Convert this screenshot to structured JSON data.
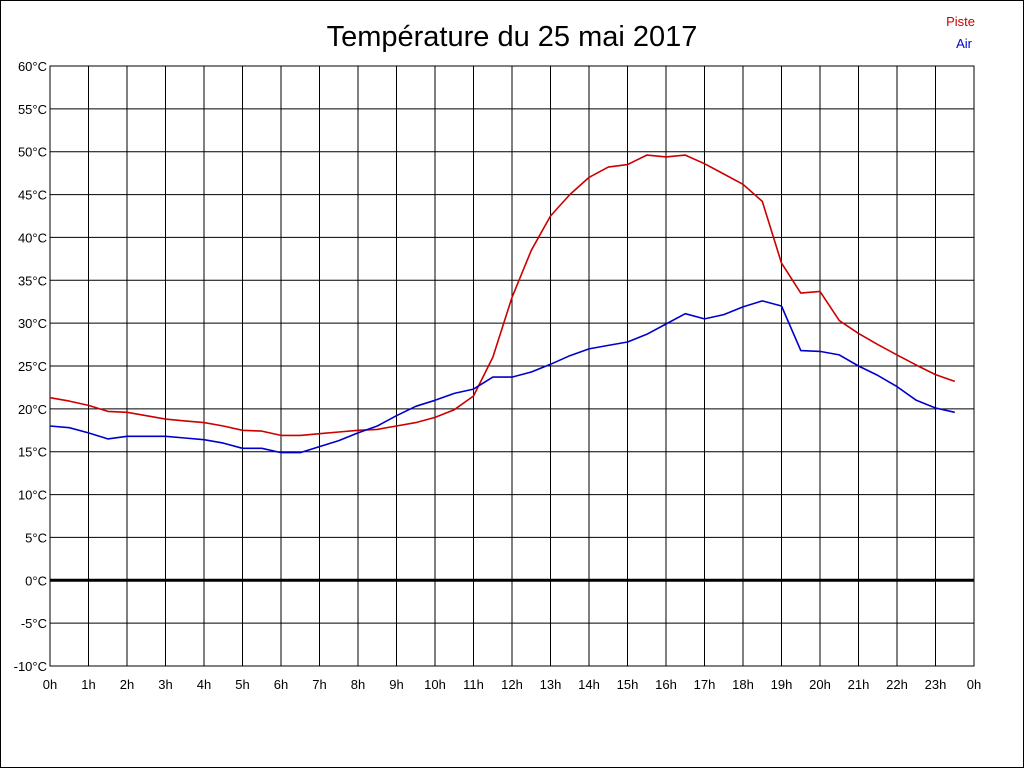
{
  "chart_data": {
    "type": "line",
    "title": "Température du 25 mai 2017",
    "xlabel": "",
    "ylabel": "",
    "x_ticks": [
      "0h",
      "1h",
      "2h",
      "3h",
      "4h",
      "5h",
      "6h",
      "7h",
      "8h",
      "9h",
      "10h",
      "11h",
      "12h",
      "13h",
      "14h",
      "15h",
      "16h",
      "17h",
      "18h",
      "19h",
      "20h",
      "21h",
      "22h",
      "23h",
      "0h"
    ],
    "y_ticks": [
      "60°C",
      "55°C",
      "50°C",
      "45°C",
      "40°C",
      "35°C",
      "30°C",
      "25°C",
      "20°C",
      "15°C",
      "10°C",
      "5°C",
      "0°C",
      "-5°C",
      "-10°C"
    ],
    "xlim": [
      0,
      24
    ],
    "ylim": [
      -10,
      60
    ],
    "grid": true,
    "legend_position": "top-right",
    "x": [
      0,
      0.5,
      1,
      1.5,
      2,
      2.5,
      3,
      3.5,
      4,
      4.5,
      5,
      5.5,
      6,
      6.5,
      7,
      7.5,
      8,
      8.5,
      9,
      9.5,
      10,
      10.5,
      11,
      11.5,
      12,
      12.5,
      13,
      13.5,
      14,
      14.5,
      15,
      15.5,
      16,
      16.5,
      17,
      17.5,
      18,
      18.5,
      19,
      19.5,
      20,
      20.5,
      21,
      21.5,
      22,
      22.5,
      23,
      23.5
    ],
    "series": [
      {
        "name": "Piste",
        "color": "#cc0000",
        "values": [
          21.3,
          20.9,
          20.4,
          19.7,
          19.6,
          19.2,
          18.8,
          18.6,
          18.4,
          18.0,
          17.5,
          17.4,
          16.9,
          16.9,
          17.1,
          17.3,
          17.5,
          17.6,
          18.0,
          18.4,
          19.0,
          19.9,
          21.5,
          26.0,
          33.0,
          38.5,
          42.5,
          45.0,
          47.0,
          48.2,
          48.5,
          49.6,
          49.4,
          49.6,
          48.6,
          47.4,
          46.2,
          44.2,
          37.0,
          33.5,
          33.7,
          30.3,
          28.8,
          27.5,
          26.3,
          25.1,
          24.0,
          23.2
        ]
      },
      {
        "name": "Air",
        "color": "#0000cc",
        "values": [
          18.0,
          17.8,
          17.2,
          16.5,
          16.8,
          16.8,
          16.8,
          16.6,
          16.4,
          16.0,
          15.4,
          15.4,
          14.9,
          14.9,
          15.6,
          16.3,
          17.2,
          18.0,
          19.2,
          20.3,
          21.0,
          21.8,
          22.3,
          23.7,
          23.7,
          24.3,
          25.2,
          26.2,
          27.0,
          27.4,
          27.8,
          28.7,
          29.9,
          31.1,
          30.5,
          31.0,
          31.9,
          32.6,
          32.0,
          26.8,
          26.7,
          26.3,
          25.0,
          23.9,
          22.6,
          21.0,
          20.1,
          19.6
        ]
      }
    ]
  }
}
